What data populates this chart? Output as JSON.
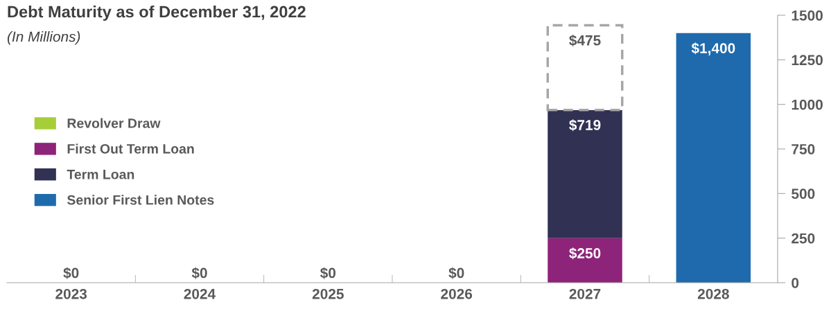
{
  "chart_data": {
    "type": "bar",
    "title": "Debt Maturity as of December 31, 2022",
    "subtitle": "(In Millions)",
    "categories": [
      "2023",
      "2024",
      "2025",
      "2026",
      "2027",
      "2028"
    ],
    "stacked": true,
    "series": [
      {
        "name": "Revolver Draw",
        "color": "#a6ce39",
        "values": [
          0,
          0,
          0,
          0,
          null,
          null
        ],
        "value_labels": [
          "$0",
          "$0",
          "$0",
          "$0",
          null,
          null
        ]
      },
      {
        "name": "First Out Term Loan",
        "color": "#8e237a",
        "values": [
          null,
          null,
          null,
          null,
          250,
          null
        ],
        "value_labels": [
          null,
          null,
          null,
          null,
          "$250",
          null
        ]
      },
      {
        "name": "Term Loan",
        "color": "#313154",
        "values": [
          null,
          null,
          null,
          null,
          719,
          null
        ],
        "value_labels": [
          null,
          null,
          null,
          null,
          "$719",
          null
        ]
      },
      {
        "name": "Senior First Lien Notes",
        "color": "#1f6aad",
        "values": [
          null,
          null,
          null,
          null,
          null,
          1400
        ],
        "value_labels": [
          null,
          null,
          null,
          null,
          null,
          "$1,400"
        ]
      },
      {
        "color": "#ffffff",
        "line_style": "dashed",
        "values": [
          null,
          null,
          null,
          null,
          475,
          null
        ],
        "value_labels": [
          null,
          null,
          null,
          null,
          "$475",
          null
        ]
      }
    ],
    "ylim": [
      0,
      1500
    ],
    "yticks": [
      0,
      250,
      500,
      750,
      1000,
      1250,
      1500
    ],
    "legend": "center left",
    "grid": false
  }
}
